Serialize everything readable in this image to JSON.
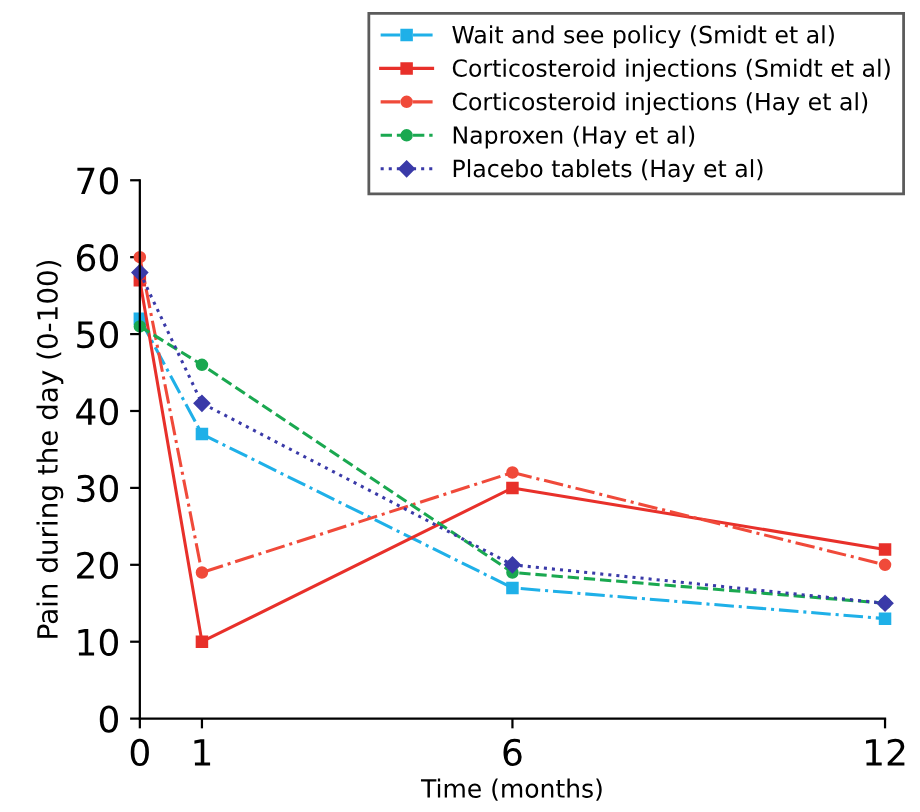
{
  "chart_data": {
    "type": "line",
    "xlabel": "Time (months)",
    "ylabel": "Pain during the day (0-100)",
    "x": [
      0,
      1,
      6,
      12
    ],
    "xlim": [
      0,
      12
    ],
    "xticks": [
      0,
      1,
      6,
      12
    ],
    "ylim": [
      0,
      70
    ],
    "yticks": [
      0,
      10,
      20,
      30,
      40,
      50,
      60,
      70
    ],
    "grid": false,
    "legend": "top right",
    "series": [
      {
        "name": "Wait and see policy (Smidt et al)",
        "color": "#1fb0e8",
        "marker": "square",
        "line_style": "dashdot",
        "values": [
          52,
          37,
          17,
          13
        ]
      },
      {
        "name": "Corticosteroid injections (Smidt et al)",
        "color": "#e8302a",
        "marker": "square",
        "line_style": "solid",
        "values": [
          57,
          10,
          30,
          22
        ]
      },
      {
        "name": "Corticosteroid injections (Hay et al)",
        "color": "#f04a3a",
        "marker": "circle",
        "line_style": "dashdot",
        "values": [
          60,
          19,
          32,
          20
        ]
      },
      {
        "name": "Naproxen (Hay et al)",
        "color": "#1aa850",
        "marker": "circle",
        "line_style": "dashed",
        "values": [
          51,
          46,
          19,
          15
        ]
      },
      {
        "name": "Placebo tablets (Hay et al)",
        "color": "#3a3aa8",
        "marker": "diamond",
        "line_style": "dotted",
        "values": [
          58,
          41,
          20,
          15
        ]
      }
    ]
  }
}
